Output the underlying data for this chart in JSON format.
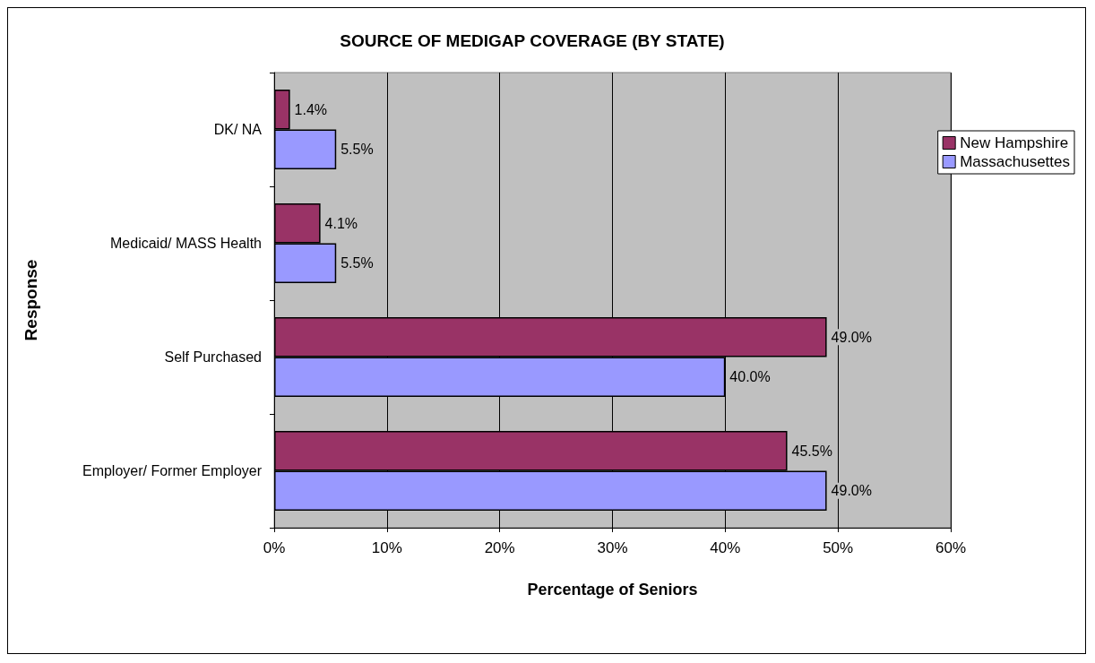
{
  "chart_data": {
    "type": "bar",
    "orientation": "horizontal",
    "title": "SOURCE OF MEDIGAP COVERAGE (BY STATE)",
    "xlabel": "Percentage of Seniors",
    "ylabel": "Response",
    "categories": [
      "DK/ NA",
      "Medicaid/ MASS Health",
      "Self Purchased",
      "Employer/ Former Employer"
    ],
    "series": [
      {
        "name": "New Hampshire",
        "color": "#993366",
        "values": [
          1.4,
          4.1,
          49.0,
          45.5
        ],
        "value_labels": [
          "1.4%",
          "4.1%",
          "49.0%",
          "45.5%"
        ]
      },
      {
        "name": "Massachusettes",
        "color": "#9999ff",
        "values": [
          5.5,
          5.5,
          40.0,
          49.0
        ],
        "value_labels": [
          "5.5%",
          "5.5%",
          "40.0%",
          "49.0%"
        ]
      }
    ],
    "xlim": [
      0,
      60
    ],
    "xticks": [
      {
        "value": 0,
        "label": "0%"
      },
      {
        "value": 10,
        "label": "10%"
      },
      {
        "value": 20,
        "label": "20%"
      },
      {
        "value": 30,
        "label": "30%"
      },
      {
        "value": 40,
        "label": "40%"
      },
      {
        "value": 50,
        "label": "50%"
      },
      {
        "value": 60,
        "label": "60%"
      }
    ],
    "grid": "x",
    "legend": "right"
  }
}
